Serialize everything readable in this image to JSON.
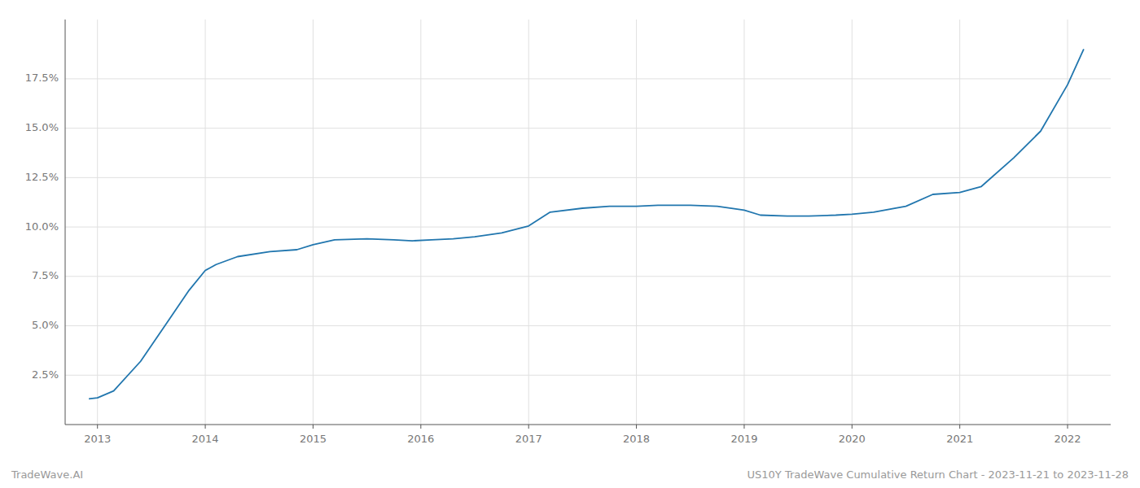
{
  "chart_data": {
    "type": "line",
    "x": [
      2012.92,
      2013.0,
      2013.15,
      2013.4,
      2013.65,
      2013.85,
      2014.0,
      2014.1,
      2014.3,
      2014.6,
      2014.85,
      2015.0,
      2015.2,
      2015.5,
      2015.75,
      2015.92,
      2016.1,
      2016.3,
      2016.5,
      2016.75,
      2017.0,
      2017.2,
      2017.5,
      2017.75,
      2018.0,
      2018.2,
      2018.5,
      2018.75,
      2019.0,
      2019.15,
      2019.4,
      2019.6,
      2019.85,
      2020.0,
      2020.2,
      2020.5,
      2020.75,
      2021.0,
      2021.2,
      2021.5,
      2021.75,
      2022.0,
      2022.15
    ],
    "values": [
      1.3,
      1.35,
      1.7,
      3.2,
      5.2,
      6.8,
      7.8,
      8.1,
      8.5,
      8.75,
      8.85,
      9.1,
      9.35,
      9.4,
      9.35,
      9.3,
      9.35,
      9.4,
      9.5,
      9.7,
      10.05,
      10.75,
      10.95,
      11.05,
      11.05,
      11.1,
      11.1,
      11.05,
      10.85,
      10.6,
      10.55,
      10.55,
      10.6,
      10.65,
      10.75,
      11.05,
      11.65,
      11.75,
      12.05,
      13.5,
      14.85,
      17.2,
      19.0
    ],
    "color": "#2176ae",
    "xlim": [
      2012.7,
      2022.4
    ],
    "xticks": [
      2013,
      2014,
      2015,
      2016,
      2017,
      2018,
      2019,
      2020,
      2021,
      2022
    ],
    "ylim": [
      0.0,
      20.5
    ],
    "yticks": [
      {
        "value": 2.5,
        "label": "2.5%"
      },
      {
        "value": 5.0,
        "label": "5.0%"
      },
      {
        "value": 7.5,
        "label": "7.5%"
      },
      {
        "value": 10.0,
        "label": "10.0%"
      },
      {
        "value": 12.5,
        "label": "12.5%"
      },
      {
        "value": 15.0,
        "label": "15.0%"
      },
      {
        "value": 17.5,
        "label": "17.5%"
      }
    ],
    "grid": true,
    "annotations": [
      "TradeWave.AI",
      "US10Y TradeWave Cumulative Return Chart - 2023-11-21 to 2023-11-28"
    ]
  }
}
